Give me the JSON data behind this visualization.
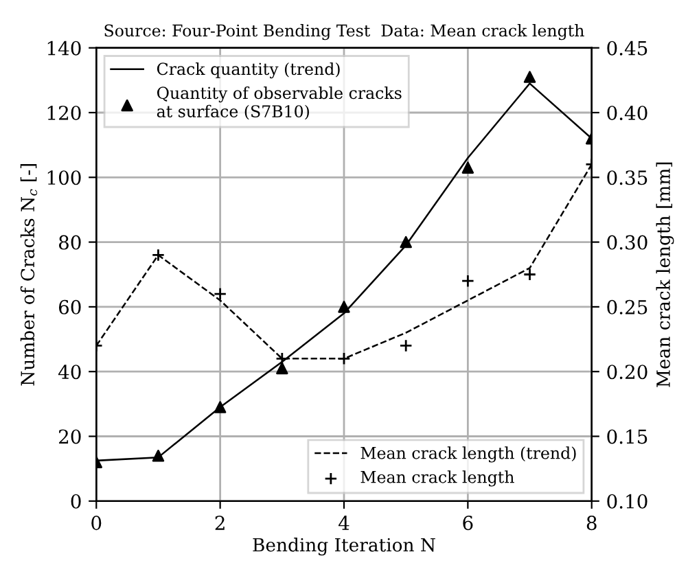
{
  "chart_data": {
    "type": "line",
    "title": "Source: Four-Point Bending Test  Data: Mean crack length",
    "xlabel": "Bending Iteration N",
    "ylabel": "Number of Cracks N$_{c}$ [-]",
    "y2label": "Mean crack length [mm]",
    "x": [
      0,
      1,
      2,
      3,
      4,
      5,
      6,
      7,
      8
    ],
    "series": [
      {
        "name": "Crack quantity (trend)",
        "color": "#000000",
        "line_style": "solid",
        "marker": "none",
        "values": [
          12.5,
          13.5,
          29,
          43,
          58,
          79,
          106,
          129,
          112
        ]
      },
      {
        "name": "Quantity of observable cracks\nat surface (S7B10)",
        "type": "scatter",
        "color": "#000000",
        "marker": "triangle",
        "values": [
          12,
          14,
          29,
          41,
          60,
          80,
          103,
          131,
          112
        ]
      },
      {
        "name": "Mean crack length (trend)",
        "axis": "y2",
        "color": "#000000",
        "line_style": "dashed",
        "marker": "none",
        "values": [
          0.22,
          0.29,
          0.255,
          0.21,
          0.21,
          0.23,
          0.255,
          0.28,
          0.36
        ]
      },
      {
        "name": "Mean crack length",
        "type": "scatter",
        "axis": "y2",
        "color": "#000000",
        "marker": "cross",
        "values": [
          0.22,
          0.29,
          0.26,
          0.21,
          0.21,
          0.22,
          0.27,
          0.275,
          0.36
        ]
      }
    ],
    "xlim": [
      0,
      8
    ],
    "xticks": [
      0,
      2,
      4,
      6,
      8
    ],
    "ylim": [
      0,
      140
    ],
    "yticks": [
      0,
      20,
      40,
      60,
      80,
      100,
      120,
      140
    ],
    "y2lim": [
      0.1,
      0.45
    ],
    "y2ticks": [
      {
        "value": 0.1,
        "label": "0.10"
      },
      {
        "value": 0.15,
        "label": "0.15"
      },
      {
        "value": 0.2,
        "label": "0.20"
      },
      {
        "value": 0.25,
        "label": "0.25"
      },
      {
        "value": 0.3,
        "label": "0.30"
      },
      {
        "value": 0.35,
        "label": "0.35"
      },
      {
        "value": 0.4,
        "label": "0.40"
      },
      {
        "value": 0.45,
        "label": "0.45"
      }
    ],
    "grid": true,
    "legend": [
      "top left",
      "bottom right"
    ]
  }
}
